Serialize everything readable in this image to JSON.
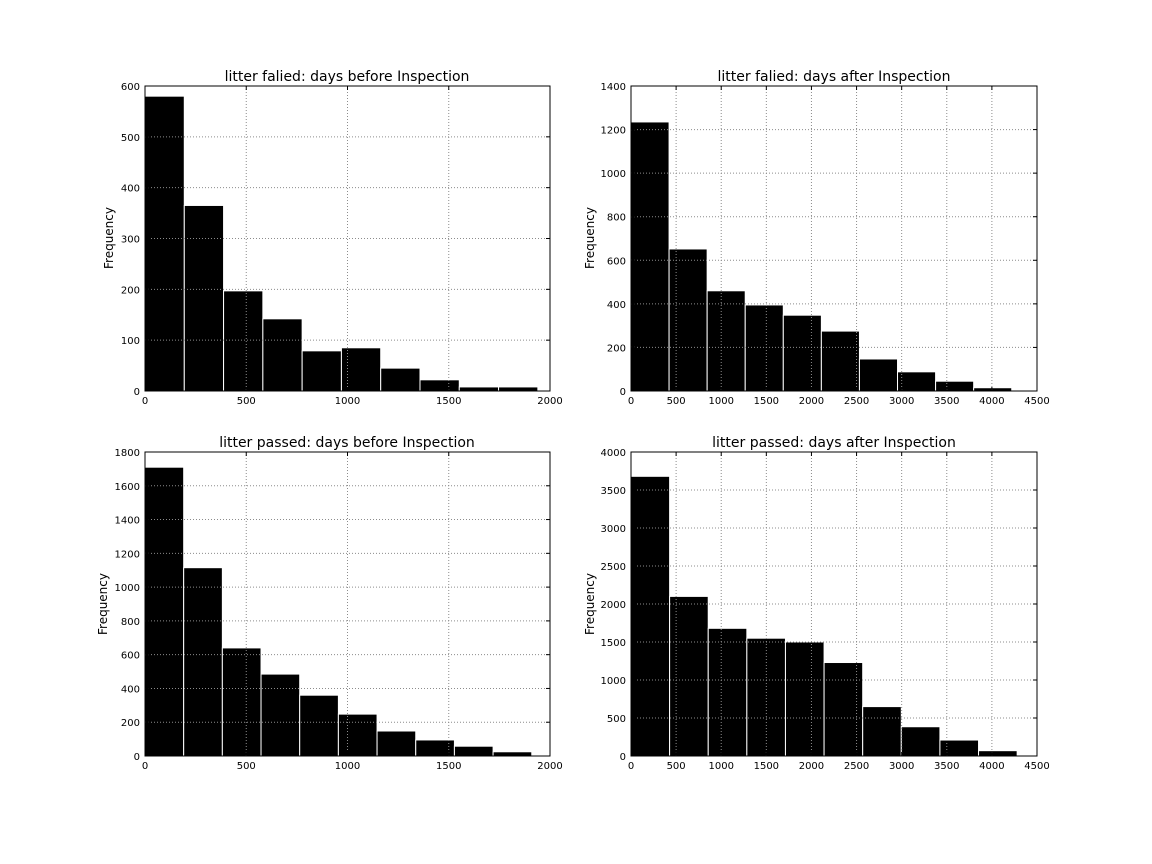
{
  "chart_data": [
    {
      "type": "bar",
      "title": "litter falied: days before Inspection",
      "xlabel": "",
      "ylabel": "Frequency",
      "xlim": [
        0,
        2000
      ],
      "ylim": [
        0,
        600
      ],
      "xticks": [
        0,
        500,
        1000,
        1500,
        2000
      ],
      "yticks": [
        0,
        100,
        200,
        300,
        400,
        500,
        600
      ],
      "grid": true,
      "bar_color": "#000000",
      "bins": [
        {
          "x0": 0,
          "x1": 194,
          "value": 580
        },
        {
          "x0": 194,
          "x1": 388,
          "value": 365
        },
        {
          "x0": 388,
          "x1": 582,
          "value": 197
        },
        {
          "x0": 582,
          "x1": 776,
          "value": 142
        },
        {
          "x0": 776,
          "x1": 970,
          "value": 79
        },
        {
          "x0": 970,
          "x1": 1164,
          "value": 85
        },
        {
          "x0": 1164,
          "x1": 1358,
          "value": 45
        },
        {
          "x0": 1358,
          "x1": 1552,
          "value": 22
        },
        {
          "x0": 1552,
          "x1": 1746,
          "value": 8
        },
        {
          "x0": 1746,
          "x1": 1940,
          "value": 8
        }
      ]
    },
    {
      "type": "bar",
      "title": "litter falied: days after Inspection",
      "xlabel": "",
      "ylabel": "Frequency",
      "xlim": [
        0,
        4500
      ],
      "ylim": [
        0,
        1400
      ],
      "xticks": [
        0,
        500,
        1000,
        1500,
        2000,
        2500,
        3000,
        3500,
        4000,
        4500
      ],
      "yticks": [
        0,
        200,
        400,
        600,
        800,
        1000,
        1200,
        1400
      ],
      "grid": true,
      "bar_color": "#000000",
      "bins": [
        {
          "x0": 0,
          "x1": 422,
          "value": 1235
        },
        {
          "x0": 422,
          "x1": 844,
          "value": 652
        },
        {
          "x0": 844,
          "x1": 1266,
          "value": 460
        },
        {
          "x0": 1266,
          "x1": 1688,
          "value": 395
        },
        {
          "x0": 1688,
          "x1": 2110,
          "value": 348
        },
        {
          "x0": 2110,
          "x1": 2532,
          "value": 275
        },
        {
          "x0": 2532,
          "x1": 2954,
          "value": 147
        },
        {
          "x0": 2954,
          "x1": 3376,
          "value": 88
        },
        {
          "x0": 3376,
          "x1": 3798,
          "value": 45
        },
        {
          "x0": 3798,
          "x1": 4220,
          "value": 15
        }
      ]
    },
    {
      "type": "bar",
      "title": "litter passed: days before Inspection",
      "xlabel": "",
      "ylabel": "Frequency",
      "xlim": [
        0,
        2000
      ],
      "ylim": [
        0,
        1800
      ],
      "xticks": [
        0,
        500,
        1000,
        1500,
        2000
      ],
      "yticks": [
        0,
        200,
        400,
        600,
        800,
        1000,
        1200,
        1400,
        1600,
        1800
      ],
      "grid": true,
      "bar_color": "#000000",
      "bins": [
        {
          "x0": 0,
          "x1": 191,
          "value": 1710
        },
        {
          "x0": 191,
          "x1": 382,
          "value": 1115
        },
        {
          "x0": 382,
          "x1": 573,
          "value": 640
        },
        {
          "x0": 573,
          "x1": 764,
          "value": 485
        },
        {
          "x0": 764,
          "x1": 955,
          "value": 360
        },
        {
          "x0": 955,
          "x1": 1146,
          "value": 248
        },
        {
          "x0": 1146,
          "x1": 1337,
          "value": 148
        },
        {
          "x0": 1337,
          "x1": 1528,
          "value": 95
        },
        {
          "x0": 1528,
          "x1": 1719,
          "value": 58
        },
        {
          "x0": 1719,
          "x1": 1910,
          "value": 25
        }
      ]
    },
    {
      "type": "bar",
      "title": "litter passed: days after Inspection",
      "xlabel": "",
      "ylabel": "Frequency",
      "xlim": [
        0,
        4500
      ],
      "ylim": [
        0,
        4000
      ],
      "xticks": [
        0,
        500,
        1000,
        1500,
        2000,
        2500,
        3000,
        3500,
        4000,
        4500
      ],
      "yticks": [
        0,
        500,
        1000,
        1500,
        2000,
        2500,
        3000,
        3500,
        4000
      ],
      "grid": true,
      "bar_color": "#000000",
      "bins": [
        {
          "x0": 0,
          "x1": 428,
          "value": 3680
        },
        {
          "x0": 428,
          "x1": 856,
          "value": 2100
        },
        {
          "x0": 856,
          "x1": 1284,
          "value": 1680
        },
        {
          "x0": 1284,
          "x1": 1712,
          "value": 1550
        },
        {
          "x0": 1712,
          "x1": 2140,
          "value": 1500
        },
        {
          "x0": 2140,
          "x1": 2568,
          "value": 1230
        },
        {
          "x0": 2568,
          "x1": 2996,
          "value": 650
        },
        {
          "x0": 2996,
          "x1": 3424,
          "value": 385
        },
        {
          "x0": 3424,
          "x1": 3852,
          "value": 210
        },
        {
          "x0": 3852,
          "x1": 4280,
          "value": 70
        }
      ]
    }
  ]
}
